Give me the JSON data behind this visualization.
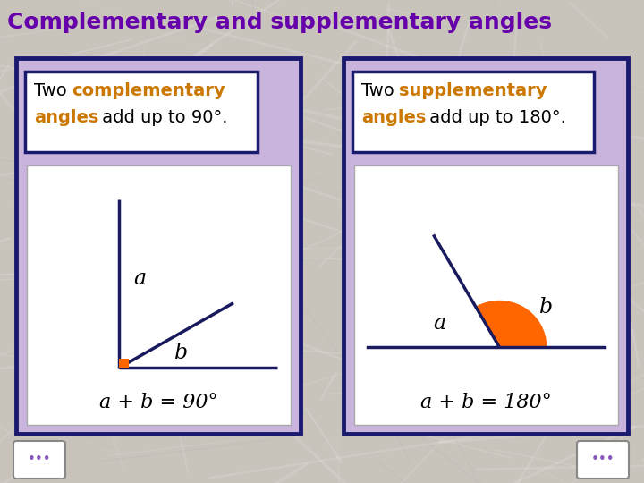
{
  "title": "Complementary and supplementary angles",
  "title_color": "#6600AA",
  "title_fontsize": 18,
  "panel_bg": "#C8B4DC",
  "panel_border_color": "#1A1A6E",
  "header_border_color": "#1A1A6E",
  "colored_word_color": "#CC7700",
  "left_formula": "a + b = 90°",
  "right_formula": "a + b = 180°",
  "angle_color": "#FF6600",
  "line_color": "#1A1A5E",
  "right_angle_color": "#FF6600",
  "bg_light": "#D8D0C8",
  "bg_dark": "#B8B0A8"
}
